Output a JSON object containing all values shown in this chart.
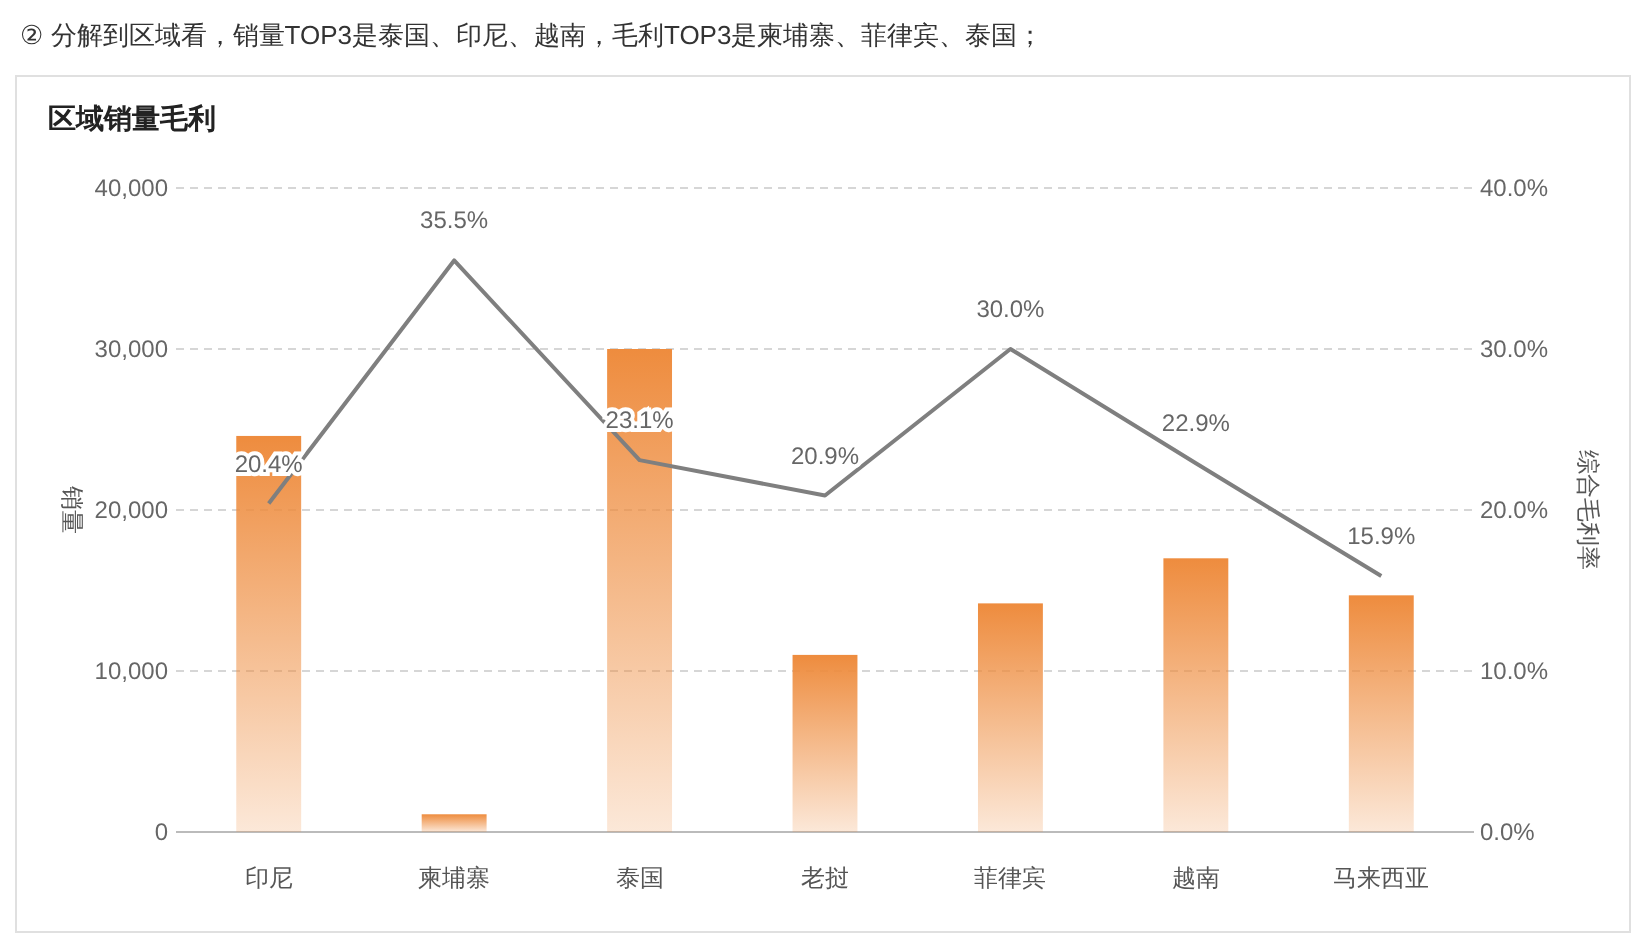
{
  "chart_data": {
    "type": "bar",
    "title": "区域销量毛利",
    "annotations": [
      "② 分解到区域看，销量TOP3是泰国、印尼、越南，毛利TOP3是柬埔寨、菲律宾、泰国；"
    ],
    "categories": [
      "印尼",
      "柬埔寨",
      "泰国",
      "老挝",
      "菲律宾",
      "越南",
      "马来西亚"
    ],
    "ylabel": "销量",
    "y2label": "综合毛利率",
    "series": [
      {
        "color": "#ee8c3e",
        "values": [
          24600,
          1100,
          30000,
          11000,
          14200,
          17000,
          14700
        ]
      },
      {
        "type": "line",
        "axis": "y2",
        "color": "#7f7f7f",
        "values": [
          20.4,
          35.5,
          23.1,
          20.9,
          30.0,
          22.9,
          15.9
        ],
        "value_labels": [
          "20.4%",
          "35.5%",
          "23.1%",
          "20.9%",
          "30.0%",
          "22.9%",
          "15.9%"
        ]
      }
    ],
    "ylim": [
      0,
      40000
    ],
    "yticks": [
      {
        "value": 0,
        "label": "0"
      },
      {
        "value": 10000,
        "label": "10,000"
      },
      {
        "value": 20000,
        "label": "20,000"
      },
      {
        "value": 30000,
        "label": "30,000"
      },
      {
        "value": 40000,
        "label": "40,000"
      }
    ],
    "y2lim": [
      0,
      40
    ],
    "y2ticks": [
      {
        "value": 0,
        "label": "0.0%"
      },
      {
        "value": 10,
        "label": "10.0%"
      },
      {
        "value": 20,
        "label": "20.0%"
      },
      {
        "value": 30,
        "label": "30.0%"
      },
      {
        "value": 40,
        "label": "40.0%"
      }
    ],
    "grid": "y",
    "marker": "none",
    "line_style": "solid"
  }
}
